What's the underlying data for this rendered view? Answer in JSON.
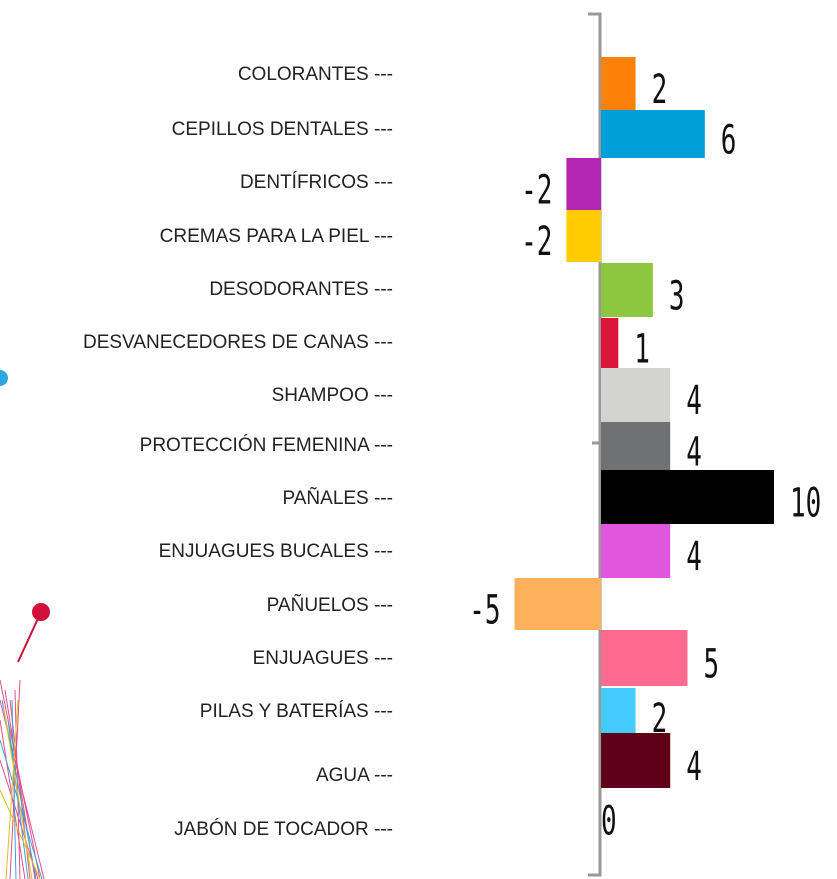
{
  "chart_data": {
    "type": "hbar",
    "categories": [
      "COLORANTES ---",
      "CEPILLOS DENTALES ---",
      "DENTÍFRICOS ---",
      "CREMAS PARA LA PIEL ---",
      "DESODORANTES ---",
      "DESVANECEDORES DE CANAS ---",
      "SHAMPOO ---",
      "PROTECCIÓN FEMENINA ---",
      "PAÑALES ---",
      "ENJUAGUES BUCALES ---",
      "PAÑUELOS ---",
      "ENJUAGUES ---",
      "PILAS Y BATERÍAS ---",
      "AGUA ---",
      "JABÓN DE TOCADOR ---"
    ],
    "values": [
      2,
      6,
      -2,
      -2,
      3,
      1,
      4,
      4,
      10,
      4,
      -5,
      5,
      2,
      4,
      0
    ],
    "colors": [
      "#fd8008",
      "#009fd9",
      "#b224b2",
      "#ffcc00",
      "#8dc63f",
      "#dc143c",
      "#d3d4cf",
      "#707173",
      "#000000",
      "#e056dc",
      "#ffb05a",
      "#ff6b8f",
      "#44ccff",
      "#5f0018",
      null
    ]
  }
}
